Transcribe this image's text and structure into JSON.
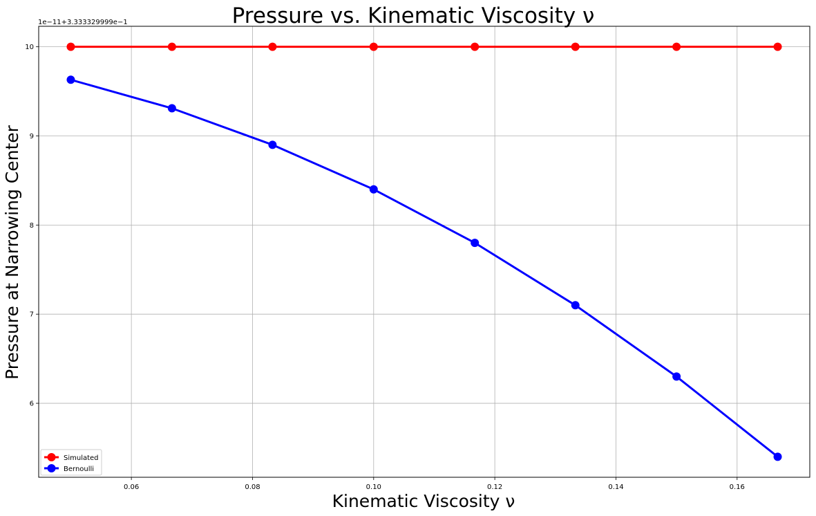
{
  "chart_data": {
    "type": "line",
    "title": "Pressure vs. Kinematic Viscosity ν",
    "xlabel": "Kinematic Viscosity ν",
    "ylabel": "Pressure at Narrowing Center",
    "y_offset_text": "1e−11+3.333329999e−1",
    "xlim": [
      0.0447,
      0.172
    ],
    "ylim": [
      5.17,
      10.23
    ],
    "x_ticks": [
      0.06,
      0.08,
      0.1,
      0.12,
      0.14,
      0.16
    ],
    "x_tick_labels": [
      "0.06",
      "0.08",
      "0.10",
      "0.12",
      "0.14",
      "0.16"
    ],
    "y_ticks": [
      6,
      7,
      8,
      9,
      10
    ],
    "y_tick_labels": [
      "6",
      "7",
      "8",
      "9",
      "10"
    ],
    "grid": true,
    "legend_position": "lower-left",
    "x": [
      0.05,
      0.0667,
      0.0833,
      0.1,
      0.1167,
      0.1333,
      0.15,
      0.1667
    ],
    "series": [
      {
        "name": "Simulated",
        "color": "#ff0000",
        "values": [
          10,
          10,
          10,
          10,
          10,
          10,
          10,
          10
        ]
      },
      {
        "name": "Bernoulli",
        "color": "#0000ff",
        "values": [
          9.63,
          9.31,
          8.9,
          8.4,
          7.8,
          7.1,
          6.3,
          5.4
        ]
      }
    ]
  }
}
